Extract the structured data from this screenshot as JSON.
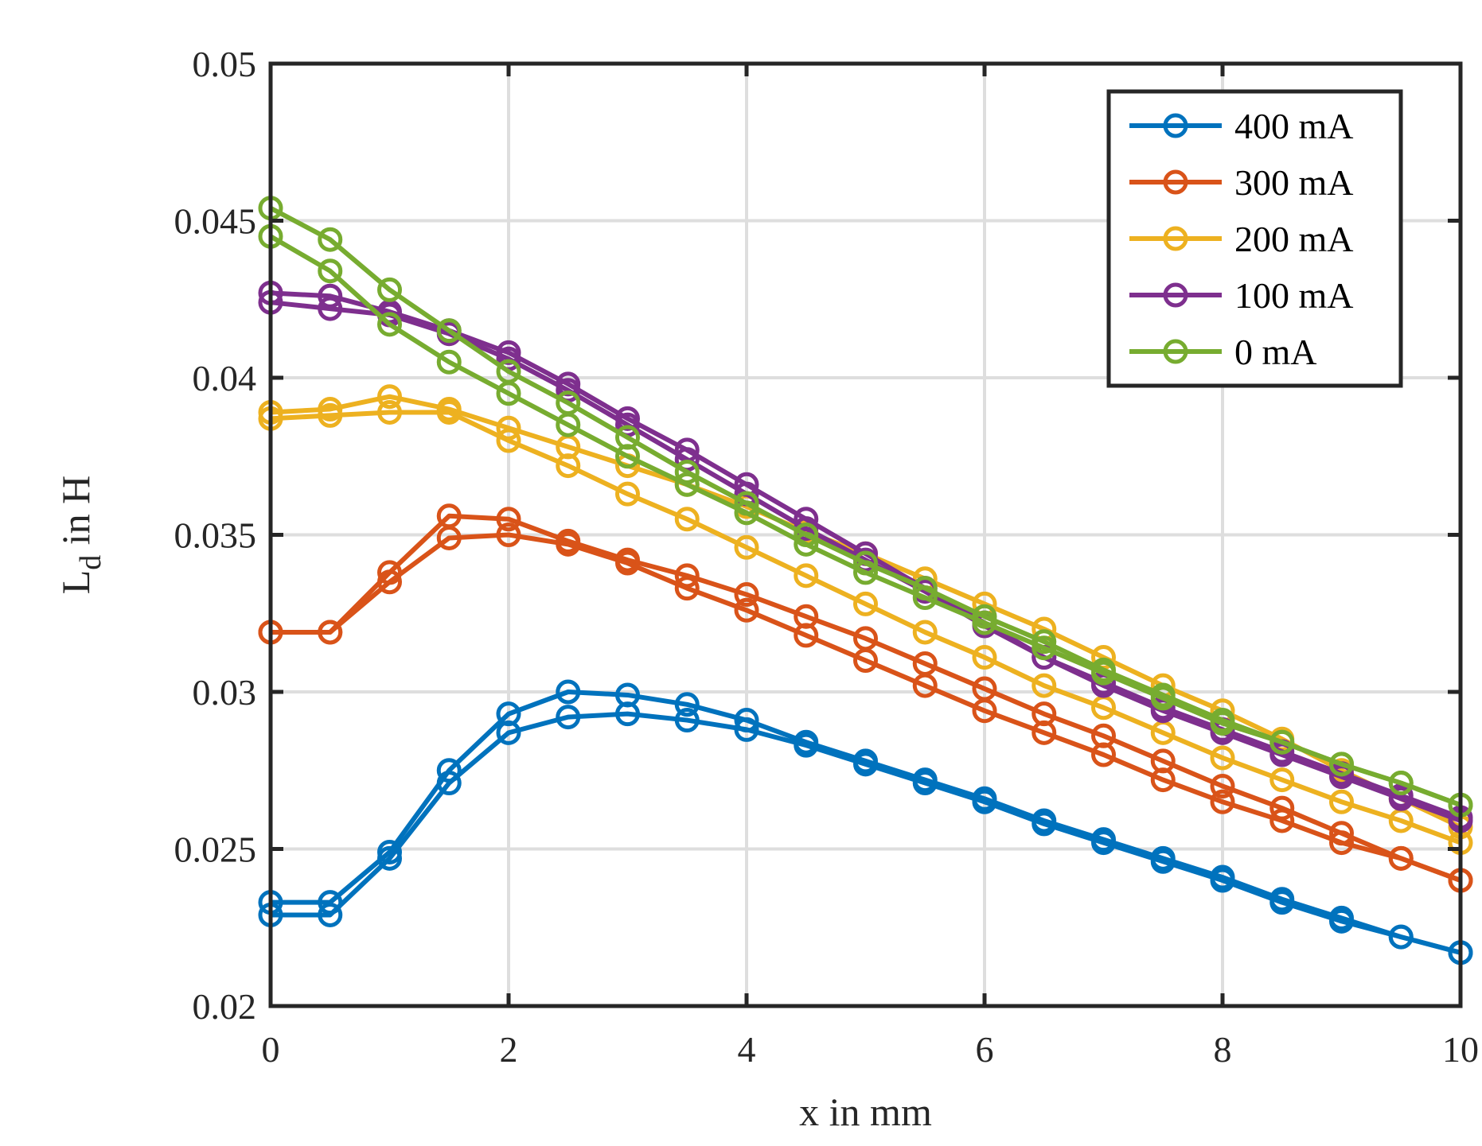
{
  "chart_data": {
    "type": "line",
    "title": "",
    "xlabel": "x in mm",
    "ylabel": "L",
    "ylabel_subscript": "d",
    "ylabel_suffix": " in H",
    "xlim": [
      0,
      10
    ],
    "ylim": [
      0.02,
      0.05
    ],
    "xticks": [
      0,
      2,
      4,
      6,
      8,
      10
    ],
    "xtick_labels": [
      "0",
      "2",
      "4",
      "6",
      "8",
      "10"
    ],
    "yticks": [
      0.02,
      0.025,
      0.03,
      0.035,
      0.04,
      0.045,
      0.05
    ],
    "ytick_labels": [
      "0.02",
      "0.025",
      "0.03",
      "0.035",
      "0.04",
      "0.045",
      "0.05"
    ],
    "grid": true,
    "legend_position": "top-right",
    "x": [
      0,
      0.5,
      1,
      1.5,
      2,
      2.5,
      3,
      3.5,
      4,
      4.5,
      5,
      5.5,
      6,
      6.5,
      7,
      7.5,
      8,
      8.5,
      9,
      9.5,
      10
    ],
    "series": [
      {
        "name": "400 mA",
        "color": "#0072BD",
        "branches": [
          [
            0.0233,
            0.0233,
            0.0249,
            0.0275,
            0.0293,
            0.03,
            0.0299,
            0.0296,
            0.0291,
            0.0284,
            0.0278,
            0.0272,
            0.0266,
            0.0259,
            0.0253,
            0.0247,
            0.0241,
            0.0234,
            0.0228,
            0.0222,
            0.0217
          ],
          [
            0.0229,
            0.0229,
            0.0247,
            0.0271,
            0.0287,
            0.0292,
            0.0293,
            0.0291,
            0.0288,
            0.0283,
            0.0277,
            0.0271,
            0.0265,
            0.0258,
            0.0252,
            0.0246,
            0.024,
            0.0233,
            0.0227,
            0.0222,
            0.0217
          ]
        ]
      },
      {
        "name": "300 mA",
        "color": "#D95319",
        "branches": [
          [
            0.0319,
            0.0319,
            0.0338,
            0.0356,
            0.0355,
            0.0348,
            0.0342,
            0.0337,
            0.0331,
            0.0324,
            0.0317,
            0.0309,
            0.0301,
            0.0293,
            0.0286,
            0.0278,
            0.027,
            0.0263,
            0.0255,
            0.0247,
            0.024
          ],
          [
            0.0319,
            0.0319,
            0.0335,
            0.0349,
            0.035,
            0.0347,
            0.0341,
            0.0333,
            0.0326,
            0.0318,
            0.031,
            0.0302,
            0.0294,
            0.0287,
            0.028,
            0.0272,
            0.0265,
            0.0259,
            0.0252,
            0.0247,
            0.024
          ]
        ]
      },
      {
        "name": "200 mA",
        "color": "#EDB120",
        "branches": [
          [
            0.0389,
            0.039,
            0.0394,
            0.039,
            0.0384,
            0.0378,
            0.0372,
            0.0366,
            0.0359,
            0.0351,
            0.0344,
            0.0336,
            0.0328,
            0.032,
            0.0311,
            0.0302,
            0.0294,
            0.0285,
            0.0275,
            0.0266,
            0.0257
          ],
          [
            0.0387,
            0.0388,
            0.0389,
            0.0389,
            0.038,
            0.0372,
            0.0363,
            0.0355,
            0.0346,
            0.0337,
            0.0328,
            0.0319,
            0.0311,
            0.0302,
            0.0295,
            0.0287,
            0.0279,
            0.0272,
            0.0265,
            0.0259,
            0.0252
          ]
        ]
      },
      {
        "name": "100 mA",
        "color": "#7E2F8E",
        "branches": [
          [
            0.0427,
            0.0426,
            0.0421,
            0.0415,
            0.0408,
            0.0398,
            0.0387,
            0.0377,
            0.0366,
            0.0355,
            0.0344,
            0.0333,
            0.0322,
            0.0311,
            0.0302,
            0.0294,
            0.0287,
            0.028,
            0.0273,
            0.0266,
            0.0259
          ],
          [
            0.0424,
            0.0422,
            0.042,
            0.0414,
            0.0406,
            0.0396,
            0.0385,
            0.0374,
            0.0363,
            0.0352,
            0.0342,
            0.0332,
            0.0321,
            0.0311,
            0.0303,
            0.0295,
            0.0288,
            0.0281,
            0.0274,
            0.0267,
            0.026
          ]
        ]
      },
      {
        "name": "0 mA",
        "color": "#77AC30",
        "branches": [
          [
            0.0454,
            0.0444,
            0.0428,
            0.0415,
            0.0402,
            0.0392,
            0.0381,
            0.037,
            0.036,
            0.035,
            0.0341,
            0.0333,
            0.0324,
            0.0316,
            0.0307,
            0.0299,
            0.0291,
            0.0284,
            0.0277,
            0.0271,
            0.0264
          ],
          [
            0.0445,
            0.0434,
            0.0417,
            0.0405,
            0.0395,
            0.0385,
            0.0375,
            0.0366,
            0.0357,
            0.0347,
            0.0338,
            0.033,
            0.0322,
            0.0314,
            0.0306,
            0.0298,
            0.029,
            0.0284,
            0.0277,
            0.0271,
            0.0264
          ]
        ]
      }
    ]
  }
}
